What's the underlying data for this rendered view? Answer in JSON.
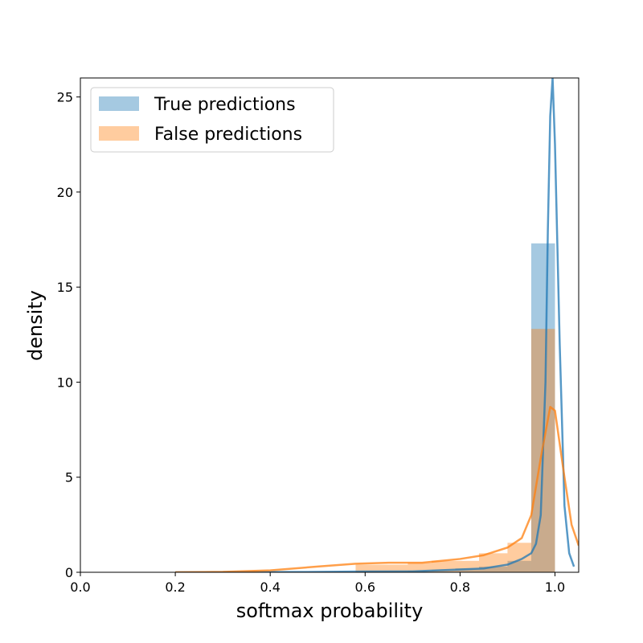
{
  "chart_data": {
    "type": "histogram",
    "title": "",
    "xlabel": "softmax probability",
    "ylabel": "density",
    "xlim": [
      0.0,
      1.05
    ],
    "ylim": [
      0,
      26
    ],
    "x_ticks": [
      "0.0",
      "0.2",
      "0.4",
      "0.6",
      "0.8",
      "1.0"
    ],
    "y_ticks": [
      "0",
      "5",
      "10",
      "15",
      "20",
      "25"
    ],
    "legend_position": "top-left",
    "grid": false,
    "series": [
      {
        "name": "True predictions",
        "color": "#1f77b4",
        "hist_bins": [
          {
            "x0": 0.58,
            "x1": 0.63,
            "density": 0.05
          },
          {
            "x0": 0.63,
            "x1": 0.69,
            "density": 0.05
          },
          {
            "x0": 0.69,
            "x1": 0.74,
            "density": 0.08
          },
          {
            "x0": 0.74,
            "x1": 0.79,
            "density": 0.12
          },
          {
            "x0": 0.79,
            "x1": 0.84,
            "density": 0.2
          },
          {
            "x0": 0.84,
            "x1": 0.9,
            "density": 0.3
          },
          {
            "x0": 0.9,
            "x1": 0.95,
            "density": 0.6
          },
          {
            "x0": 0.95,
            "x1": 1.0,
            "density": 17.3
          }
        ],
        "kde": [
          [
            0.2,
            0.0
          ],
          [
            0.5,
            0.02
          ],
          [
            0.6,
            0.04
          ],
          [
            0.7,
            0.05
          ],
          [
            0.8,
            0.15
          ],
          [
            0.85,
            0.2
          ],
          [
            0.9,
            0.4
          ],
          [
            0.93,
            0.7
          ],
          [
            0.95,
            1.0
          ],
          [
            0.96,
            1.5
          ],
          [
            0.97,
            3.0
          ],
          [
            0.98,
            10.0
          ],
          [
            0.985,
            18.0
          ],
          [
            0.99,
            24.0
          ],
          [
            0.995,
            26.0
          ],
          [
            1.0,
            22.5
          ],
          [
            1.01,
            12.0
          ],
          [
            1.02,
            3.5
          ],
          [
            1.03,
            1.0
          ],
          [
            1.04,
            0.3
          ]
        ]
      },
      {
        "name": "False predictions",
        "color": "#ff7f0e",
        "hist_bins": [
          {
            "x0": 0.58,
            "x1": 0.63,
            "density": 0.4
          },
          {
            "x0": 0.63,
            "x1": 0.69,
            "density": 0.4
          },
          {
            "x0": 0.69,
            "x1": 0.74,
            "density": 0.5
          },
          {
            "x0": 0.74,
            "x1": 0.79,
            "density": 0.6
          },
          {
            "x0": 0.79,
            "x1": 0.84,
            "density": 0.6
          },
          {
            "x0": 0.84,
            "x1": 0.9,
            "density": 1.0
          },
          {
            "x0": 0.9,
            "x1": 0.95,
            "density": 1.55
          },
          {
            "x0": 0.95,
            "x1": 1.0,
            "density": 12.8
          }
        ],
        "kde": [
          [
            0.2,
            0.0
          ],
          [
            0.3,
            0.02
          ],
          [
            0.4,
            0.1
          ],
          [
            0.5,
            0.3
          ],
          [
            0.58,
            0.45
          ],
          [
            0.65,
            0.5
          ],
          [
            0.72,
            0.5
          ],
          [
            0.8,
            0.7
          ],
          [
            0.85,
            0.9
          ],
          [
            0.9,
            1.3
          ],
          [
            0.93,
            1.8
          ],
          [
            0.95,
            3.0
          ],
          [
            0.97,
            6.0
          ],
          [
            0.99,
            8.7
          ],
          [
            1.0,
            8.5
          ],
          [
            1.02,
            5.0
          ],
          [
            1.035,
            2.5
          ],
          [
            1.05,
            1.4
          ]
        ]
      }
    ]
  }
}
